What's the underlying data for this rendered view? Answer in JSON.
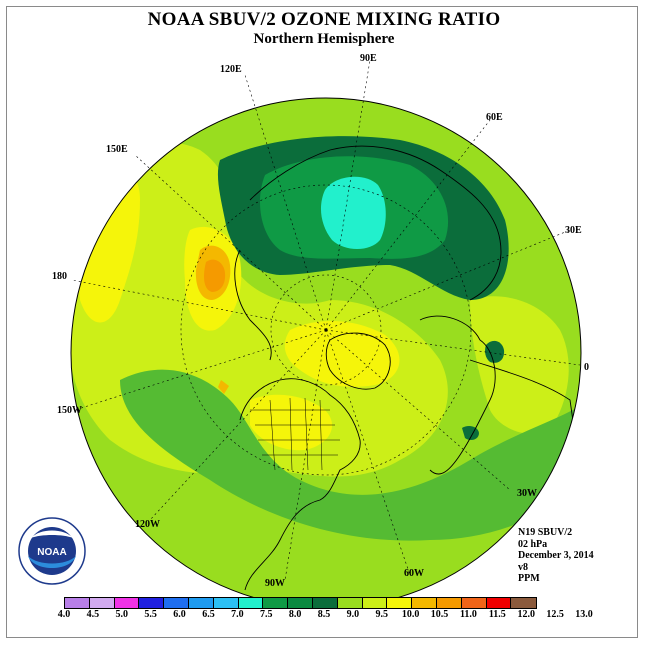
{
  "header": {
    "title": "NOAA SBUV/2 OZONE MIXING RATIO",
    "subtitle": "Northern Hemisphere"
  },
  "map": {
    "projection": "north-polar-stereographic",
    "longitude_labels": [
      "90E",
      "60E",
      "30E",
      "0",
      "30W",
      "60W",
      "90W",
      "120W",
      "150W",
      "180",
      "150E",
      "120E"
    ],
    "fill_classes": {
      "background": "#99dd1f",
      "low": "#ccef18",
      "mid": "#f5f50a",
      "high": "#f4b800",
      "peak": "#f59a00",
      "band": "#55bb33",
      "core": "#0f9a45",
      "deep": "#0b6d3b",
      "max": "#22f0cc"
    }
  },
  "info": {
    "satellite": "N19 SBUV/2",
    "level": "02 hPa",
    "date": "December 3, 2014",
    "version": "v8",
    "units": "PPM"
  },
  "colorbar": {
    "colors": [
      "#b87fe8",
      "#d2aaf0",
      "#f032e6",
      "#2020e0",
      "#1e6ef0",
      "#1e9bf0",
      "#2cc0f4",
      "#22f0cc",
      "#0f9a45",
      "#0b8a40",
      "#0b6d3b",
      "#99dd1f",
      "#ccef18",
      "#f5f50a",
      "#f4b800",
      "#f59a00",
      "#f06418",
      "#f00000",
      "#8b5a3c"
    ],
    "ticks": [
      "4.0",
      "4.5",
      "5.0",
      "5.5",
      "6.0",
      "6.5",
      "7.0",
      "7.5",
      "8.0",
      "8.5",
      "9.0",
      "9.5",
      "10.0",
      "10.5",
      "11.0",
      "11.5",
      "12.0",
      "12.5",
      "13.0"
    ]
  },
  "logo": {
    "text": "NOAA"
  }
}
